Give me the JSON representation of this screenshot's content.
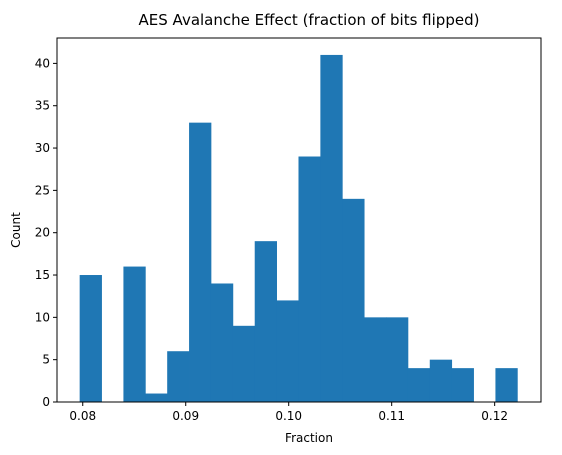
{
  "chart_data": {
    "type": "bar",
    "title": "AES Avalanche Effect (fraction of bits flipped)",
    "xlabel": "Fraction",
    "ylabel": "Count",
    "xlim": [
      0.0775,
      0.1245
    ],
    "ylim": [
      0,
      43
    ],
    "xticks": [
      "0.08",
      "0.09",
      "0.10",
      "0.11",
      "0.12"
    ],
    "xtick_values": [
      0.08,
      0.09,
      0.1,
      0.11,
      0.12
    ],
    "yticks": [
      "0",
      "5",
      "10",
      "15",
      "20",
      "25",
      "30",
      "35",
      "40"
    ],
    "ytick_values": [
      0,
      5,
      10,
      15,
      20,
      25,
      30,
      35,
      40
    ],
    "bin_width": 0.002125,
    "bins": [
      {
        "x0": 0.0797,
        "count": 15
      },
      {
        "x0": 0.081825,
        "count": 0
      },
      {
        "x0": 0.08395,
        "count": 16
      },
      {
        "x0": 0.086075,
        "count": 1
      },
      {
        "x0": 0.0882,
        "count": 6
      },
      {
        "x0": 0.090325,
        "count": 33
      },
      {
        "x0": 0.09245,
        "count": 14
      },
      {
        "x0": 0.094575,
        "count": 9
      },
      {
        "x0": 0.0967,
        "count": 19
      },
      {
        "x0": 0.098825,
        "count": 12
      },
      {
        "x0": 0.10095,
        "count": 29
      },
      {
        "x0": 0.103075,
        "count": 41
      },
      {
        "x0": 0.1052,
        "count": 24
      },
      {
        "x0": 0.107325,
        "count": 10
      },
      {
        "x0": 0.10945,
        "count": 10
      },
      {
        "x0": 0.111575,
        "count": 4
      },
      {
        "x0": 0.1137,
        "count": 5
      },
      {
        "x0": 0.115825,
        "count": 4
      },
      {
        "x0": 0.11795,
        "count": 0
      },
      {
        "x0": 0.120075,
        "count": 4
      }
    ],
    "bar_color": "#1f77b4",
    "grid": false,
    "legend": "none"
  }
}
